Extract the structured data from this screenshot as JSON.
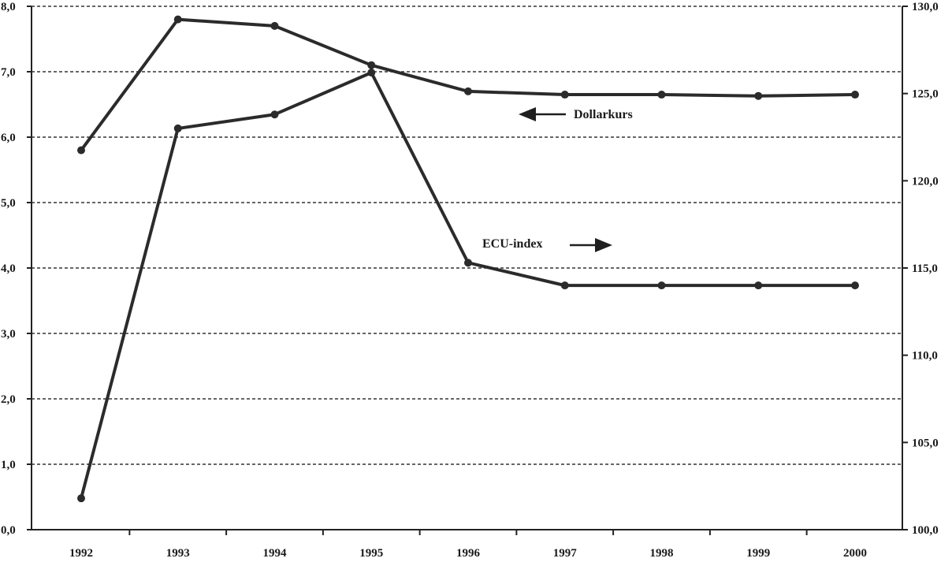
{
  "chart_data": {
    "type": "line",
    "x": [
      "1992",
      "1993",
      "1994",
      "1995",
      "1996",
      "1997",
      "1998",
      "1999",
      "2000"
    ],
    "series": [
      {
        "name": "Dollarkurs",
        "axis": "left",
        "values": [
          5.8,
          7.8,
          7.7,
          7.1,
          6.7,
          6.65,
          6.65,
          6.63,
          6.65
        ]
      },
      {
        "name": "ECU-index",
        "axis": "right",
        "values": [
          101.8,
          123.0,
          123.8,
          126.2,
          115.3,
          114.0,
          114.0,
          114.0,
          114.0
        ]
      }
    ],
    "y_left": {
      "range": [
        0,
        8
      ],
      "ticks": [
        "0,0",
        "1,0",
        "2,0",
        "3,0",
        "4,0",
        "5,0",
        "6,0",
        "7,0",
        "8,0"
      ]
    },
    "y_right": {
      "range": [
        100,
        130
      ],
      "ticks": [
        "100,0",
        "105,0",
        "110,0",
        "115,0",
        "120,0",
        "125,0",
        "130,0"
      ]
    },
    "grid": "horizontal-dashed",
    "line_color": "#2b2b2b",
    "annotations": {
      "dollar_label": "Dollarkurs",
      "ecu_label": "ECU-index"
    }
  }
}
